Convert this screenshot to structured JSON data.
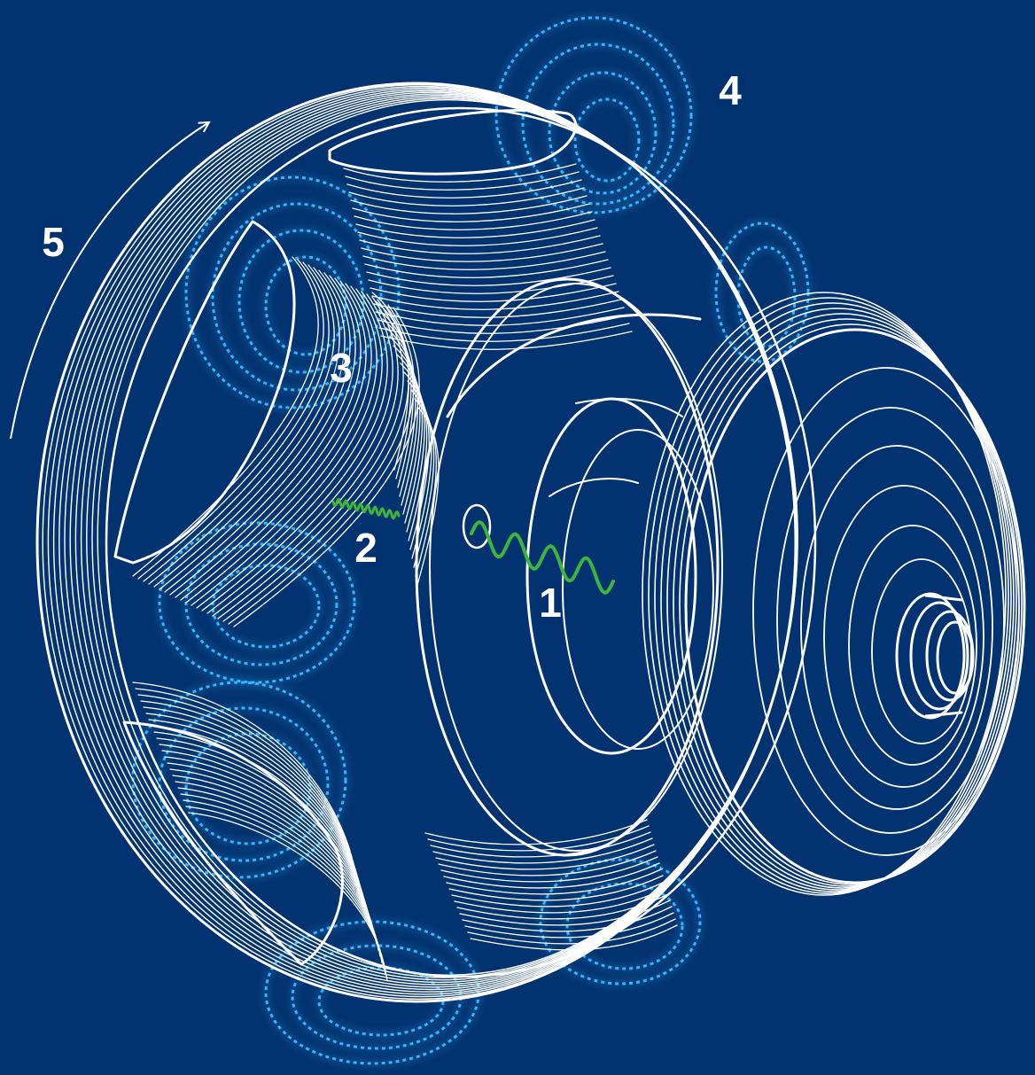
{
  "labels": {
    "l1": "1",
    "l2": "2",
    "l3": "3",
    "l4": "4",
    "l5": "5"
  },
  "colors": {
    "background": "#02326f",
    "outline": "#ffffff",
    "flow": "#35b3ff",
    "wave": "#3cb53c"
  },
  "icons": {
    "rotation": "curved-arrow-icon",
    "wave": "wavy-line-icon"
  }
}
